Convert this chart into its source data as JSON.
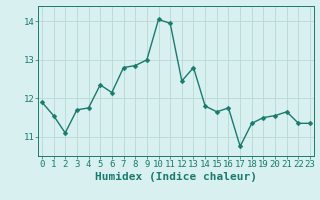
{
  "x": [
    0,
    1,
    2,
    3,
    4,
    5,
    6,
    7,
    8,
    9,
    10,
    11,
    12,
    13,
    14,
    15,
    16,
    17,
    18,
    19,
    20,
    21,
    22,
    23
  ],
  "y": [
    11.9,
    11.55,
    11.1,
    11.7,
    11.75,
    12.35,
    12.15,
    12.8,
    12.85,
    13.0,
    14.05,
    13.95,
    12.45,
    12.8,
    11.8,
    11.65,
    11.75,
    10.75,
    11.35,
    11.5,
    11.55,
    11.65,
    11.35,
    11.35
  ],
  "line_color": "#1a7a6e",
  "marker": "D",
  "marker_size": 2.5,
  "linewidth": 1.0,
  "bg_color": "#d8f0ef",
  "grid_color": "#b8d8d5",
  "tick_color": "#1a7a6e",
  "xlabel": "Humidex (Indice chaleur)",
  "xlabel_fontsize": 8,
  "xlabel_color": "#1a7a6e",
  "ylim": [
    10.5,
    14.4
  ],
  "yticks": [
    11,
    12,
    13,
    14
  ],
  "xticks": [
    0,
    1,
    2,
    3,
    4,
    5,
    6,
    7,
    8,
    9,
    10,
    11,
    12,
    13,
    14,
    15,
    16,
    17,
    18,
    19,
    20,
    21,
    22,
    23
  ],
  "tick_fontsize": 6.5,
  "xlim": [
    -0.3,
    23.3
  ]
}
